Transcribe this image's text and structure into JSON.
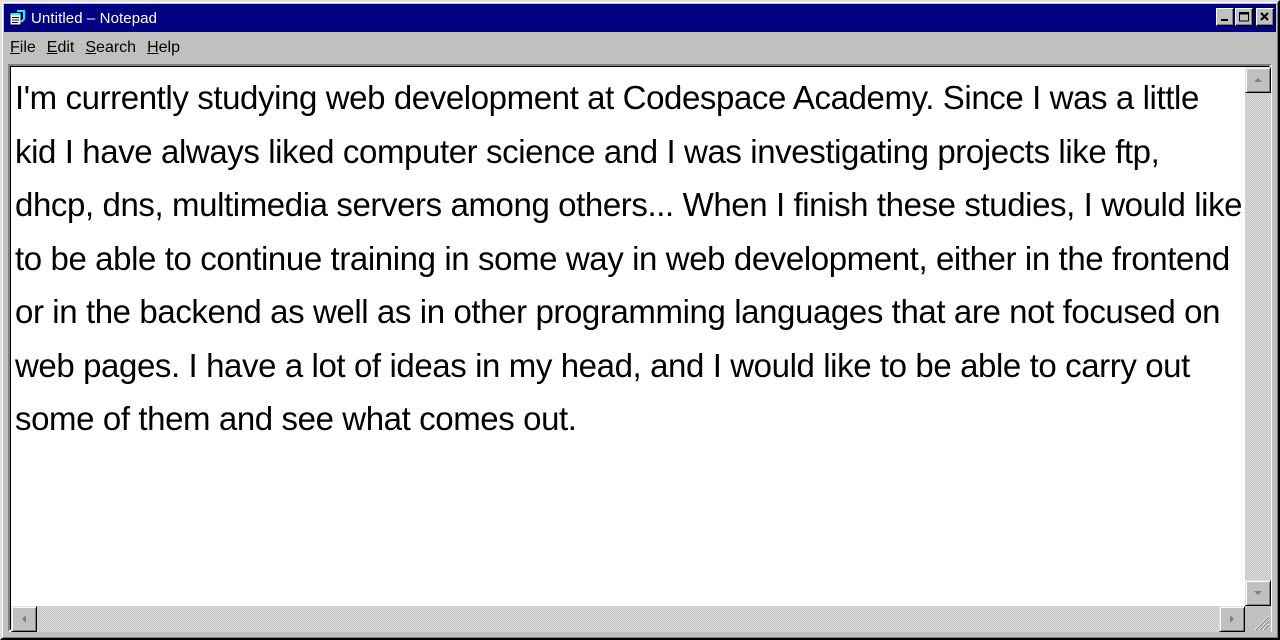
{
  "window": {
    "title": "Untitled – Notepad",
    "title_bar_color": "#000080",
    "app_icon": "notepad-icon"
  },
  "title_buttons": [
    {
      "name": "minimize-icon"
    },
    {
      "name": "maximize-icon"
    },
    {
      "name": "close-icon"
    }
  ],
  "menu": {
    "file": {
      "key": "F",
      "rest": "ile"
    },
    "edit": {
      "key": "E",
      "rest": "dit"
    },
    "search": {
      "key": "S",
      "rest": "earch"
    },
    "help": {
      "key": "H",
      "rest": "elp"
    }
  },
  "editor": {
    "text": "I'm currently studying web development at Codespace Academy. Since I was a little kid I have always liked computer science and I was investigating projects like ftp, dhcp, dns, multimedia servers among others... When I finish these studies, I would like to be able to continue training in some way in web development, either in the frontend or in the backend as well as in other programming languages that are not focused on web pages. I have a lot of ideas in my head, and I would like to be able to carry out some of them and see what comes out."
  },
  "scrollbars": {
    "up_icon": "scroll-up-arrow-icon",
    "down_icon": "scroll-down-arrow-icon",
    "left_icon": "scroll-left-arrow-icon",
    "right_icon": "scroll-right-arrow-icon",
    "grip_icon": "size-grip-icon"
  }
}
